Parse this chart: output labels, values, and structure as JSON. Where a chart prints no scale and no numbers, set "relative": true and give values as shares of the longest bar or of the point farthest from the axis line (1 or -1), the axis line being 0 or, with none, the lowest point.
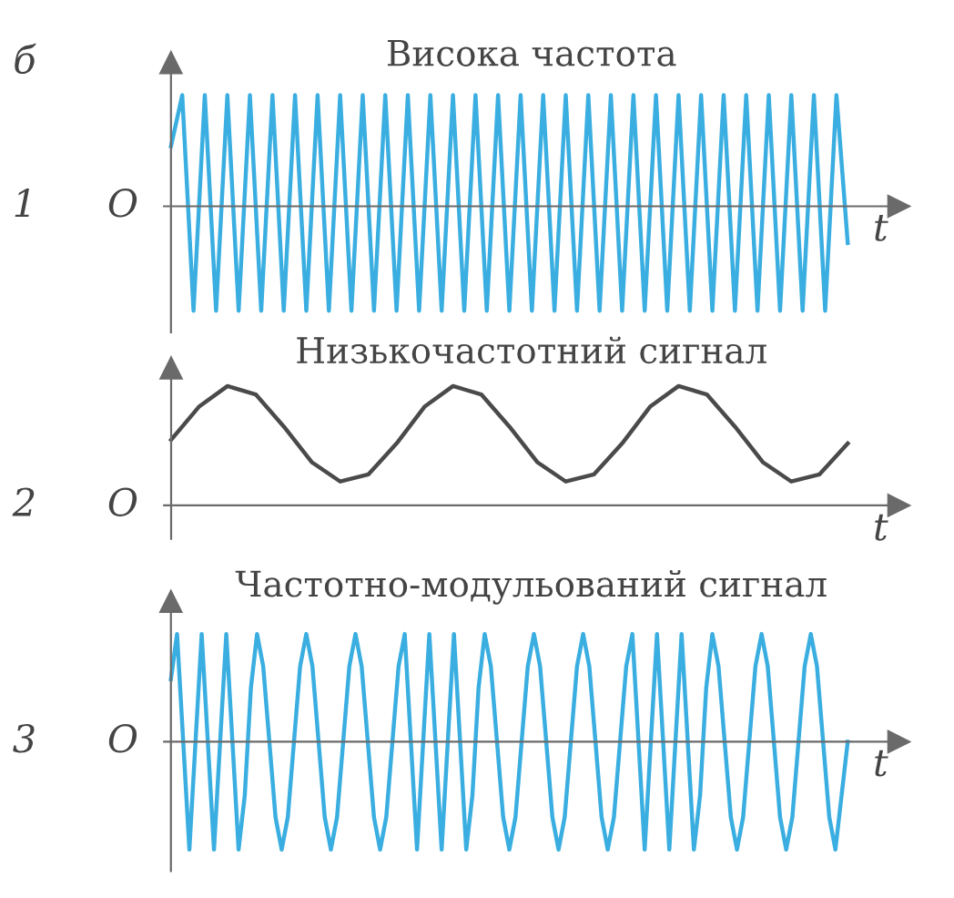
{
  "chart_data": [
    {
      "type": "line",
      "title": "Висока частота",
      "xlabel": "t",
      "annotations": [
        "б",
        "1",
        "O"
      ],
      "relative": true,
      "categories": [
        null,
        null,
        null,
        null,
        null,
        null,
        null,
        null,
        null,
        null,
        null,
        null,
        null,
        null,
        null,
        null,
        null,
        null,
        null,
        null,
        null,
        null,
        null,
        null,
        null,
        null,
        null,
        null,
        null,
        null,
        null,
        null,
        null,
        null,
        null,
        null,
        null,
        null,
        null,
        null,
        null,
        null,
        null,
        null,
        null,
        null,
        null,
        null,
        null,
        null,
        null,
        null,
        null,
        null,
        null,
        null,
        null,
        null,
        null,
        null,
        null
      ],
      "series": [
        {
          "color": "#3aaee0",
          "values": [
            0.54,
            1,
            -0.94,
            1,
            -0.94,
            1,
            -0.94,
            1,
            -0.94,
            1,
            -0.94,
            1,
            -0.94,
            1,
            -0.94,
            1,
            -0.94,
            1,
            -0.94,
            1,
            -0.94,
            1,
            -0.94,
            1,
            -0.94,
            1,
            -0.94,
            1,
            -0.94,
            1,
            -0.94,
            1,
            -0.94,
            1,
            -0.94,
            1,
            -0.94,
            1,
            -0.94,
            1,
            -0.94,
            1,
            -0.94,
            1,
            -0.94,
            1,
            -0.94,
            1,
            -0.94,
            1,
            -0.94,
            1,
            -0.94,
            1,
            -0.94,
            1,
            -0.94,
            1,
            -0.94,
            1,
            -0.33
          ]
        }
      ]
    },
    {
      "type": "line",
      "title": "Низькочастотний сигнал",
      "xlabel": "t",
      "annotations": [
        "2",
        "O"
      ],
      "relative": true,
      "categories": [
        null,
        null,
        null,
        null,
        null,
        null,
        null,
        null,
        null,
        null,
        null,
        null,
        null,
        null,
        null,
        null,
        null,
        null,
        null,
        null,
        null,
        null,
        null,
        null,
        null
      ],
      "series": [
        {
          "color": "#4a4a4a",
          "values": [
            0.55,
            0.83,
            1,
            0.93,
            0.66,
            0.36,
            0.2,
            0.26,
            0.52,
            0.83,
            1,
            0.93,
            0.66,
            0.36,
            0.2,
            0.26,
            0.52,
            0.83,
            1,
            0.93,
            0.66,
            0.36,
            0.2,
            0.26,
            0.52
          ]
        }
      ]
    },
    {
      "type": "line",
      "title": "Частотно-модульований сигнал",
      "xlabel": "t",
      "annotations": [
        "3",
        "O"
      ],
      "relative": true,
      "categories": [
        null,
        null,
        null,
        null,
        null,
        null,
        null,
        null,
        null,
        null,
        null,
        null,
        null,
        null,
        null,
        null,
        null,
        null,
        null,
        null,
        null,
        null,
        null,
        null,
        null,
        null,
        null,
        null,
        null,
        null,
        null,
        null,
        null,
        null,
        null,
        null,
        null,
        null,
        null,
        null,
        null,
        null,
        null,
        null,
        null,
        null,
        null,
        null,
        null,
        null,
        null,
        null,
        null,
        null,
        null,
        null,
        null,
        null,
        null,
        null,
        null,
        null,
        null,
        null,
        null,
        null,
        null,
        null,
        null,
        null,
        null,
        null,
        null,
        null,
        null,
        null,
        null,
        null,
        null,
        null,
        null,
        null,
        null,
        null,
        null,
        null,
        null,
        null,
        null,
        null,
        null,
        null,
        null,
        null,
        null,
        null,
        null,
        null,
        null,
        null,
        null,
        null,
        null,
        null,
        null,
        null,
        null,
        null,
        null,
        null,
        null
      ],
      "series": [
        {
          "color": "#3aaee0",
          "values": [
            0.58,
            1,
            0,
            -1,
            0,
            1,
            0,
            -1,
            0,
            1,
            0,
            -1,
            -0.5,
            0.5,
            1,
            0.7,
            0,
            -0.7,
            -1,
            -0.7,
            0,
            0.7,
            1,
            0.7,
            0,
            -0.7,
            -1,
            -0.7,
            0,
            0.7,
            1,
            0.7,
            0,
            -0.7,
            -1,
            -0.7,
            0,
            0.7,
            1,
            0,
            -1,
            0,
            1,
            0,
            -1,
            0,
            1,
            0,
            -1,
            -0.5,
            0.5,
            1,
            0.7,
            0,
            -0.7,
            -1,
            -0.7,
            0,
            0.7,
            1,
            0.7,
            0,
            -0.7,
            -1,
            -0.7,
            0,
            0.7,
            1,
            0.7,
            0,
            -0.7,
            -1,
            -0.7,
            0,
            0.7,
            1,
            0,
            -1,
            0,
            1,
            0,
            -1,
            0,
            1,
            0,
            -1,
            -0.5,
            0.5,
            1,
            0.7,
            0,
            -0.7,
            -1,
            -0.7,
            0,
            0.7,
            1,
            0.7,
            0,
            -0.7,
            -1,
            -0.7,
            0,
            0.7,
            1,
            0.7,
            0,
            -0.7,
            -1,
            -0.5,
            0
          ]
        }
      ]
    }
  ]
}
